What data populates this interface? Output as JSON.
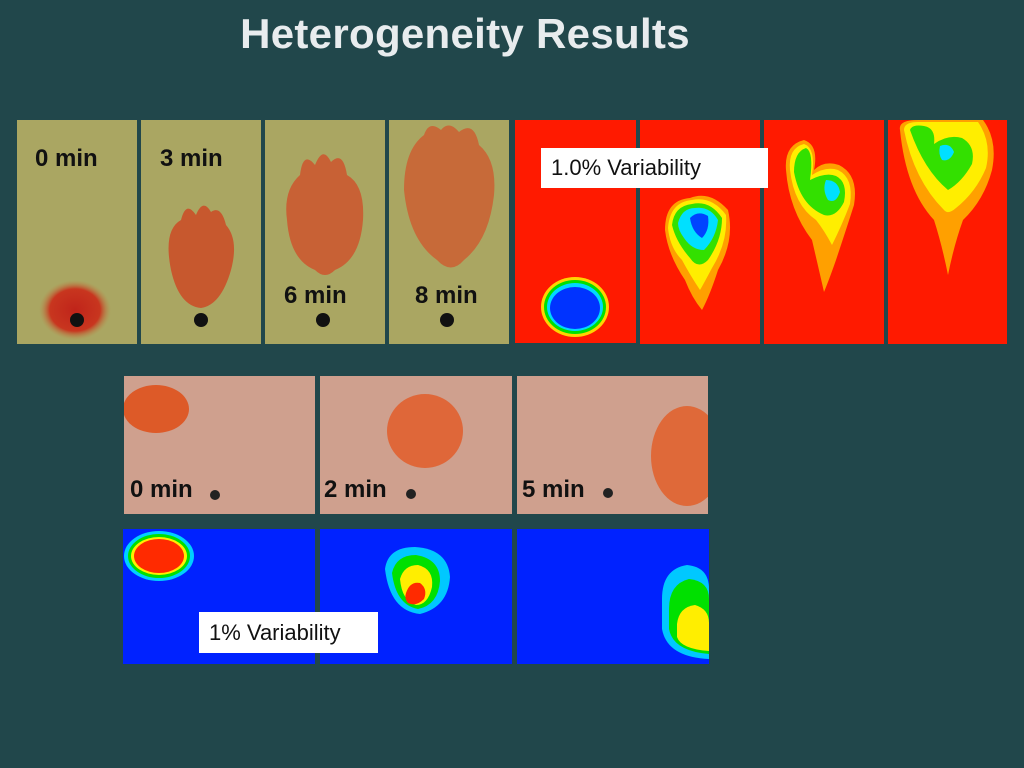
{
  "title": "Heterogeneity Results",
  "top_row": {
    "photo_labels": [
      "0 min",
      "3 min",
      "6 min",
      "8 min"
    ],
    "sim_label": "1.0% Variability"
  },
  "bottom_row": {
    "photo_labels": [
      "0 min",
      "2 min",
      "5 min"
    ],
    "sim_label": "1% Variability"
  },
  "colors": {
    "background": "#21474b",
    "sim_top_background": "#ff1a00",
    "sim_bottom_background": "#0022ff",
    "photo_top_background": "#a9a562",
    "photo_bottom_background": "#cfa08e",
    "plume": "#d8501e"
  }
}
